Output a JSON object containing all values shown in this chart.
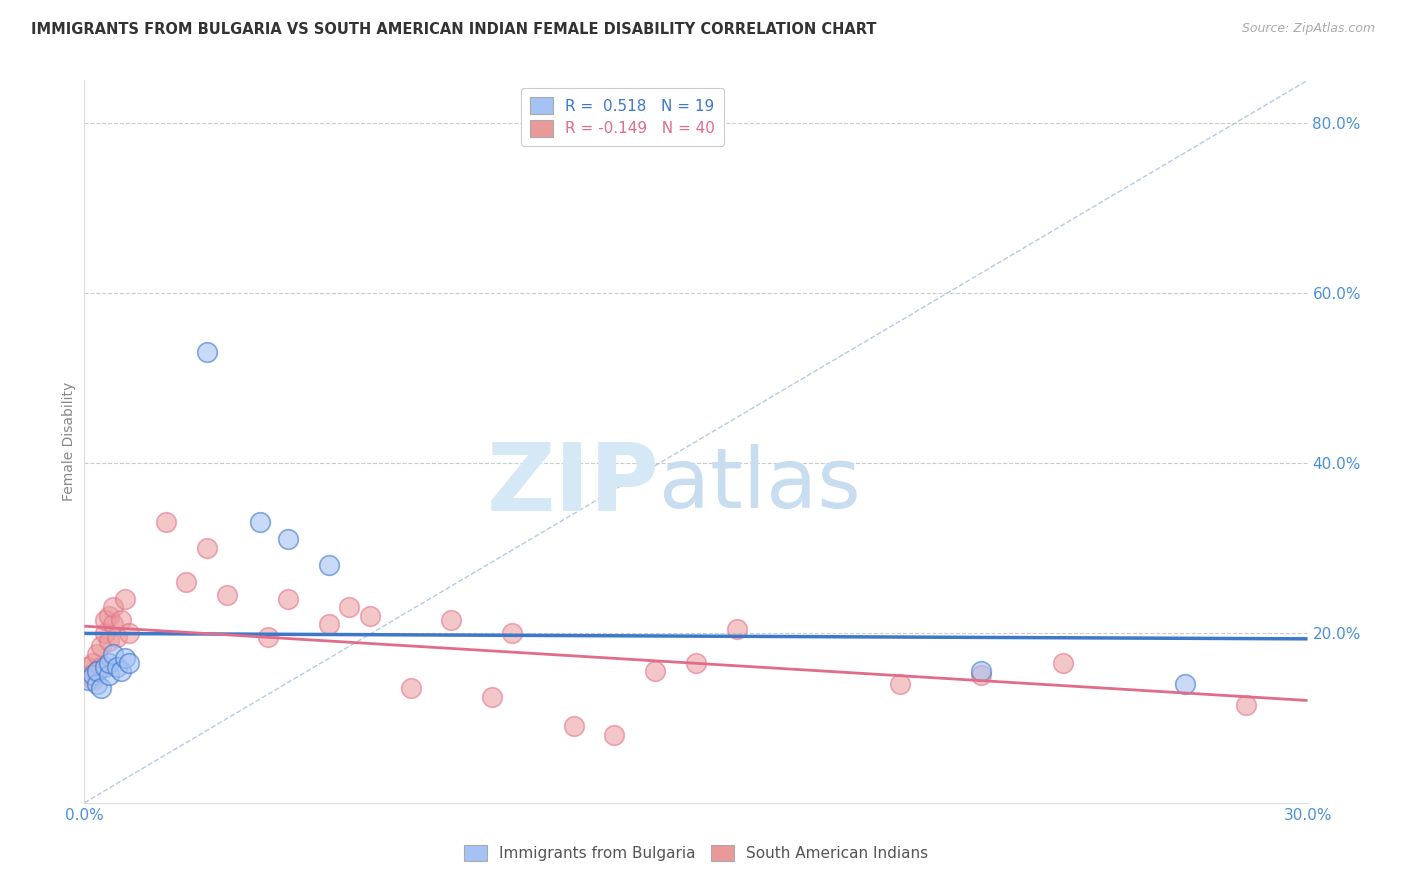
{
  "title": "IMMIGRANTS FROM BULGARIA VS SOUTH AMERICAN INDIAN FEMALE DISABILITY CORRELATION CHART",
  "source": "Source: ZipAtlas.com",
  "ylabel": "Female Disability",
  "xlim": [
    0.0,
    0.3
  ],
  "ylim": [
    0.0,
    0.85
  ],
  "r_bulgaria": 0.518,
  "n_bulgaria": 19,
  "r_sai": -0.149,
  "n_sai": 40,
  "blue_color": "#a4c2f4",
  "pink_color": "#ea9999",
  "blue_line_color": "#3d78c9",
  "pink_line_color": "#e06c8a",
  "tick_color": "#4a90d9",
  "watermark_zip_color": "#d0e4f7",
  "watermark_atlas_color": "#c5d8f0",
  "bulgaria_x": [
    0.001,
    0.002,
    0.003,
    0.003,
    0.004,
    0.005,
    0.006,
    0.006,
    0.007,
    0.008,
    0.009,
    0.01,
    0.011,
    0.03,
    0.043,
    0.05,
    0.06,
    0.22,
    0.27
  ],
  "bulgaria_y": [
    0.145,
    0.15,
    0.14,
    0.155,
    0.135,
    0.16,
    0.15,
    0.165,
    0.175,
    0.16,
    0.155,
    0.17,
    0.165,
    0.53,
    0.33,
    0.31,
    0.28,
    0.155,
    0.14
  ],
  "sai_x": [
    0.001,
    0.001,
    0.002,
    0.002,
    0.003,
    0.003,
    0.004,
    0.004,
    0.005,
    0.005,
    0.006,
    0.006,
    0.007,
    0.007,
    0.008,
    0.009,
    0.01,
    0.011,
    0.02,
    0.025,
    0.03,
    0.035,
    0.045,
    0.05,
    0.06,
    0.065,
    0.07,
    0.08,
    0.09,
    0.1,
    0.105,
    0.12,
    0.13,
    0.14,
    0.15,
    0.16,
    0.2,
    0.22,
    0.24,
    0.285
  ],
  "sai_y": [
    0.15,
    0.16,
    0.145,
    0.165,
    0.155,
    0.175,
    0.16,
    0.185,
    0.2,
    0.215,
    0.19,
    0.22,
    0.21,
    0.23,
    0.195,
    0.215,
    0.24,
    0.2,
    0.33,
    0.26,
    0.3,
    0.245,
    0.195,
    0.24,
    0.21,
    0.23,
    0.22,
    0.135,
    0.215,
    0.125,
    0.2,
    0.09,
    0.08,
    0.155,
    0.165,
    0.205,
    0.14,
    0.15,
    0.165,
    0.115
  ]
}
